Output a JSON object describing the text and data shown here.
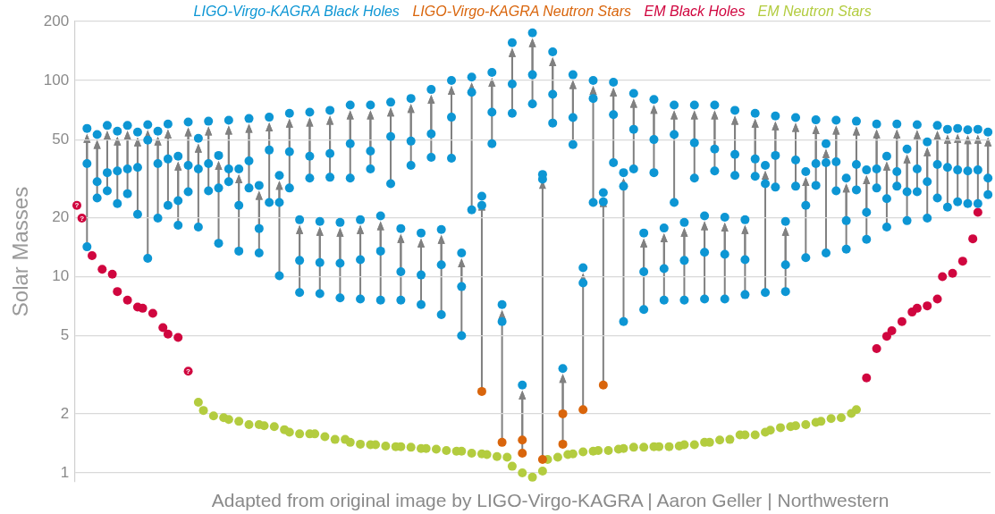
{
  "chart_data": {
    "type": "scatter",
    "ylabel": "Solar Masses",
    "log": true,
    "grid": "y",
    "tick_labels": "y",
    "marker": "circle",
    "ylim": [
      0.9,
      200
    ],
    "yticks": [
      1,
      2,
      5,
      10,
      20,
      50,
      100,
      200
    ],
    "categories": [
      null,
      null,
      null,
      null,
      null,
      null,
      null,
      null,
      null,
      null,
      null,
      null,
      null,
      null,
      null,
      null,
      null,
      null,
      null,
      null,
      null,
      null,
      null,
      null,
      null,
      null,
      null,
      null,
      null,
      null,
      null,
      null,
      null,
      null,
      null,
      null,
      null,
      null,
      null,
      null,
      null,
      null,
      null,
      null,
      null,
      null,
      null,
      null,
      null,
      null,
      null,
      null,
      null,
      null,
      null,
      null,
      null,
      null,
      null,
      null,
      null,
      null,
      null,
      null,
      null,
      null,
      null,
      null,
      null,
      null,
      null,
      null,
      null,
      null,
      null,
      null,
      null,
      null,
      null,
      null,
      null,
      null,
      null,
      null,
      null,
      null,
      null,
      null,
      null,
      null,
      null,
      null,
      null,
      null,
      null,
      null,
      null,
      null,
      null,
      null,
      null,
      null,
      null,
      null,
      null,
      null,
      null,
      null,
      null,
      null,
      null,
      null,
      null,
      null,
      null,
      null,
      null,
      null,
      null,
      null,
      null,
      null,
      null,
      null,
      null,
      null,
      null,
      null,
      null,
      null,
      null,
      null,
      null,
      null,
      null,
      null,
      null,
      null,
      null,
      null,
      null,
      null,
      null,
      null,
      null,
      null,
      null,
      null,
      null,
      null,
      null,
      null,
      null,
      null,
      null,
      null,
      null,
      null,
      null,
      null,
      null,
      null,
      null,
      null,
      null,
      null,
      null,
      null,
      null,
      null,
      null,
      null,
      null,
      null,
      null,
      null,
      null,
      null,
      null,
      null,
      null
    ],
    "series": [
      {
        "name": "LIGO-Virgo-KAGRA Black Holes",
        "color": "#0d96d4",
        "values": [
          null,
          null,
          57,
          null,
          53,
          null,
          59,
          null,
          55.2,
          null,
          59,
          null,
          54.6,
          null,
          59.5,
          null,
          55.2,
          null,
          60,
          null,
          41.1,
          null,
          61.4,
          null,
          50.7,
          null,
          62,
          null,
          41.5,
          null,
          62.7,
          null,
          35.4,
          null,
          64,
          null,
          29.2,
          null,
          65,
          null,
          32.8,
          null,
          68,
          null,
          19.5,
          null,
          69,
          null,
          19.1,
          null,
          70.5,
          null,
          18.9,
          null,
          75,
          null,
          19.5,
          null,
          75,
          null,
          20.4,
          null,
          77.5,
          null,
          17.6,
          null,
          81,
          null,
          16.7,
          null,
          90,
          null,
          17.4,
          null,
          100,
          null,
          13.2,
          null,
          104,
          null,
          25.7,
          null,
          110,
          null,
          7.2,
          null,
          156,
          null,
          2.8,
          null,
          175,
          null,
          33.2,
          null,
          140,
          null,
          3.4,
          null,
          107,
          null,
          11.1,
          null,
          100,
          null,
          26.8,
          null,
          98,
          null,
          33.9,
          null,
          86,
          null,
          16.7,
          null,
          80,
          null,
          17.7,
          null,
          75,
          null,
          18.9,
          null,
          75,
          null,
          20.4,
          null,
          75,
          null,
          20.1,
          null,
          70.5,
          null,
          19.5,
          null,
          68,
          null,
          36.9,
          null,
          66,
          null,
          19.1,
          null,
          64.7,
          null,
          34.3,
          null,
          63,
          null,
          47.6,
          null,
          62.7,
          null,
          31.8,
          null,
          62,
          null,
          35,
          null,
          60,
          null,
          41.1,
          null,
          60,
          null,
          44.7,
          null,
          59.5,
          null,
          48.6,
          null,
          59,
          null,
          56.4,
          null,
          57,
          null,
          56,
          null,
          56.4,
          null,
          54.6
        ]
      },
      {
        "color": "#0d96d4",
        "values": [
          null,
          null,
          37.7,
          null,
          30.5,
          null,
          33.9,
          null,
          34.6,
          null,
          35.4,
          null,
          36.1,
          null,
          49.7,
          null,
          37.7,
          null,
          39.8,
          null,
          24.4,
          null,
          36.9,
          null,
          35.4,
          null,
          37.7,
          null,
          28.3,
          null,
          35.4,
          null,
          23.1,
          null,
          38.9,
          null,
          17.6,
          null,
          44.2,
          null,
          23.9,
          null,
          43.3,
          null,
          12.1,
          null,
          41.1,
          null,
          11.8,
          null,
          42.4,
          null,
          11.7,
          null,
          47.6,
          null,
          12.2,
          null,
          43.7,
          null,
          13.5,
          null,
          51.8,
          null,
          10.6,
          null,
          49.1,
          null,
          10.2,
          null,
          53.5,
          null,
          11.5,
          null,
          65,
          null,
          8.9,
          null,
          87,
          null,
          23.1,
          null,
          69,
          null,
          5.9,
          null,
          96,
          null,
          null,
          null,
          107,
          null,
          31.4,
          null,
          85,
          null,
          null,
          null,
          64.7,
          null,
          9.3,
          null,
          81,
          null,
          24.1,
          null,
          67,
          null,
          28.9,
          null,
          56.4,
          null,
          10.6,
          null,
          50,
          null,
          11.0,
          null,
          53,
          null,
          12.1,
          null,
          48.1,
          null,
          13.3,
          null,
          44.7,
          null,
          13.0,
          null,
          42,
          null,
          12.2,
          null,
          39.8,
          null,
          29.8,
          null,
          41.5,
          null,
          11.5,
          null,
          39.3,
          null,
          23.1,
          null,
          37.7,
          null,
          38.1,
          null,
          38.5,
          null,
          19.3,
          null,
          37.3,
          null,
          21.3,
          null,
          35.4,
          null,
          25,
          null,
          34.3,
          null,
          27.1,
          null,
          35.4,
          null,
          30.5,
          null,
          37.3,
          null,
          36.1,
          null,
          35,
          null,
          34.6,
          null,
          35,
          null,
          31.8
        ]
      },
      {
        "color": "#0d96d4",
        "values": [
          null,
          null,
          14.2,
          null,
          25.2,
          null,
          27.4,
          null,
          23.6,
          null,
          26.5,
          null,
          20.8,
          null,
          12.4,
          null,
          19.9,
          null,
          23.1,
          null,
          18.3,
          null,
          27.1,
          null,
          17.9,
          null,
          27.4,
          null,
          14.8,
          null,
          30.5,
          null,
          13.5,
          null,
          28.3,
          null,
          13.2,
          null,
          23.9,
          null,
          10.1,
          null,
          28.3,
          null,
          8.3,
          null,
          31.8,
          null,
          8.2,
          null,
          32.1,
          null,
          7.8,
          null,
          31.8,
          null,
          7.7,
          null,
          35.4,
          null,
          7.6,
          null,
          29.8,
          null,
          7.6,
          null,
          36.9,
          null,
          7.2,
          null,
          40.6,
          null,
          6.4,
          null,
          40.2,
          null,
          5.0,
          null,
          21.9,
          null,
          null,
          null,
          47.6,
          null,
          null,
          null,
          68,
          null,
          null,
          null,
          76,
          null,
          null,
          null,
          60.7,
          null,
          null,
          null,
          47.1,
          null,
          null,
          null,
          23.9,
          null,
          null,
          null,
          38.1,
          null,
          5.9,
          null,
          35.4,
          null,
          6.8,
          null,
          33.9,
          null,
          7.6,
          null,
          23.9,
          null,
          7.6,
          null,
          31.8,
          null,
          7.7,
          null,
          34.6,
          null,
          7.7,
          null,
          32.8,
          null,
          8.1,
          null,
          32.5,
          null,
          8.3,
          null,
          28.6,
          null,
          8.4,
          null,
          28.9,
          null,
          12.5,
          null,
          29.2,
          null,
          13.2,
          null,
          27.4,
          null,
          13.8,
          null,
          27.7,
          null,
          15.5,
          null,
          28.3,
          null,
          17.9,
          null,
          28.9,
          null,
          19.3,
          null,
          27.1,
          null,
          19.9,
          null,
          25.2,
          null,
          22.6,
          null,
          24.1,
          null,
          23.6,
          null,
          23.6,
          null,
          26.2
        ]
      },
      {
        "name": "LIGO-Virgo-KAGRA Neutron Stars",
        "color": "#d9650c",
        "values": [
          null,
          null,
          null,
          null,
          null,
          null,
          null,
          null,
          null,
          null,
          null,
          null,
          null,
          null,
          null,
          null,
          null,
          null,
          null,
          null,
          null,
          null,
          null,
          null,
          null,
          null,
          null,
          null,
          null,
          null,
          null,
          null,
          null,
          null,
          null,
          null,
          null,
          null,
          null,
          null,
          null,
          null,
          null,
          null,
          null,
          null,
          null,
          null,
          null,
          null,
          null,
          null,
          null,
          null,
          null,
          null,
          null,
          null,
          null,
          null,
          null,
          null,
          null,
          null,
          null,
          null,
          null,
          null,
          null,
          null,
          null,
          null,
          null,
          null,
          null,
          null,
          null,
          null,
          null,
          null,
          2.6,
          null,
          null,
          null,
          1.43,
          null,
          null,
          null,
          1.26,
          null,
          null,
          null,
          1.17,
          null,
          null,
          null,
          1.4,
          null,
          null,
          null,
          2.1,
          null,
          null,
          null,
          2.8,
          null,
          null,
          null,
          null,
          null,
          null,
          null,
          null,
          null,
          null,
          null,
          null,
          null,
          null,
          null,
          null,
          null,
          null,
          null,
          null,
          null,
          null,
          null,
          null,
          null,
          null,
          null,
          null,
          null,
          null,
          null,
          null,
          null,
          null,
          null,
          null,
          null,
          null,
          null,
          null,
          null,
          null,
          null,
          null,
          null,
          null,
          null,
          null,
          null,
          null,
          null,
          null,
          null,
          null,
          null,
          null,
          null,
          null,
          null,
          null,
          null,
          null,
          null,
          null,
          null,
          null,
          null,
          null,
          null,
          null,
          null,
          null,
          null,
          null,
          null,
          null
        ]
      },
      {
        "color": "#d9650c",
        "values": [
          null,
          null,
          null,
          null,
          null,
          null,
          null,
          null,
          null,
          null,
          null,
          null,
          null,
          null,
          null,
          null,
          null,
          null,
          null,
          null,
          null,
          null,
          null,
          null,
          null,
          null,
          null,
          null,
          null,
          null,
          null,
          null,
          null,
          null,
          null,
          null,
          null,
          null,
          null,
          null,
          null,
          null,
          null,
          null,
          null,
          null,
          null,
          null,
          null,
          null,
          null,
          null,
          null,
          null,
          null,
          null,
          null,
          null,
          null,
          null,
          null,
          null,
          null,
          null,
          null,
          null,
          null,
          null,
          null,
          null,
          null,
          null,
          null,
          null,
          null,
          null,
          null,
          null,
          null,
          null,
          null,
          null,
          null,
          null,
          null,
          null,
          null,
          null,
          1.47,
          null,
          null,
          null,
          null,
          null,
          null,
          null,
          2.0,
          null,
          null,
          null,
          null,
          null,
          null,
          null,
          null,
          null,
          null,
          null,
          null,
          null,
          null,
          null,
          null,
          null,
          null,
          null,
          null,
          null,
          null,
          null,
          null,
          null,
          null,
          null,
          null,
          null,
          null,
          null,
          null,
          null,
          null,
          null,
          null,
          null,
          null,
          null,
          null,
          null,
          null,
          null,
          null,
          null,
          null,
          null,
          null,
          null,
          null,
          null,
          null,
          null,
          null,
          null,
          null,
          null,
          null,
          null,
          null,
          null,
          null,
          null,
          null,
          null,
          null,
          null,
          null,
          null,
          null,
          null,
          null,
          null,
          null,
          null,
          null,
          null,
          null,
          null,
          null,
          null,
          null,
          null,
          null
        ]
      },
      {
        "name": "EM Black Holes",
        "color": "#d0063f",
        "value_labels": [
          "?",
          "?",
          null,
          null,
          null,
          null,
          null,
          null,
          null,
          null,
          null,
          null,
          null,
          null,
          null,
          null,
          null,
          null,
          null,
          null,
          null,
          null,
          "?",
          null,
          null,
          null,
          null,
          null,
          null,
          null,
          null,
          null,
          null,
          null,
          null,
          null,
          null,
          null,
          null,
          null,
          null,
          null,
          null,
          null,
          null,
          null,
          null,
          null,
          null,
          null,
          null,
          null,
          null,
          null,
          null,
          null,
          null,
          null,
          null,
          null,
          null,
          null,
          null,
          null,
          null,
          null,
          null,
          null,
          null,
          null,
          null,
          null,
          null,
          null,
          null,
          null,
          null,
          null,
          null,
          null,
          null,
          null,
          null,
          null,
          null,
          null,
          null,
          null,
          null,
          null,
          null,
          null,
          null,
          null,
          null,
          null,
          null,
          null,
          null,
          null,
          null,
          null,
          null,
          null,
          null,
          null,
          null,
          null,
          null,
          null,
          null,
          null,
          null,
          null,
          null,
          null,
          null,
          null,
          null,
          null,
          null,
          null,
          null,
          null,
          null,
          null,
          null,
          null,
          null,
          null,
          null,
          null,
          null,
          null,
          null,
          null,
          null,
          null,
          null,
          null,
          null,
          null,
          null,
          null,
          null,
          null,
          null,
          null,
          null,
          null,
          null,
          null,
          null,
          null,
          null,
          null,
          null,
          null,
          null,
          null,
          null,
          null,
          null,
          null,
          null,
          null,
          null,
          null,
          null,
          null,
          null,
          null,
          null,
          null,
          null,
          null,
          null,
          null,
          null,
          null,
          null
        ],
        "values": [
          23.1,
          19.9,
          null,
          12.8,
          null,
          10.9,
          null,
          10.3,
          8.4,
          null,
          7.6,
          null,
          7.0,
          6.9,
          null,
          6.5,
          null,
          5.5,
          5.1,
          null,
          4.9,
          null,
          3.3,
          null,
          null,
          null,
          null,
          null,
          null,
          null,
          null,
          null,
          null,
          null,
          null,
          null,
          null,
          null,
          null,
          null,
          null,
          null,
          null,
          null,
          null,
          null,
          null,
          null,
          null,
          null,
          null,
          null,
          null,
          null,
          null,
          null,
          null,
          null,
          null,
          null,
          null,
          null,
          null,
          null,
          null,
          null,
          null,
          null,
          null,
          null,
          null,
          null,
          null,
          null,
          null,
          null,
          null,
          null,
          null,
          null,
          null,
          null,
          null,
          null,
          null,
          null,
          null,
          null,
          null,
          null,
          null,
          null,
          null,
          null,
          null,
          null,
          null,
          null,
          null,
          null,
          null,
          null,
          null,
          null,
          null,
          null,
          null,
          null,
          null,
          null,
          null,
          null,
          null,
          null,
          null,
          null,
          null,
          null,
          null,
          null,
          null,
          null,
          null,
          null,
          null,
          null,
          null,
          null,
          null,
          null,
          null,
          null,
          null,
          null,
          null,
          null,
          null,
          null,
          null,
          null,
          null,
          null,
          null,
          null,
          null,
          null,
          null,
          null,
          null,
          null,
          null,
          null,
          null,
          null,
          null,
          null,
          3.05,
          null,
          4.3,
          null,
          4.97,
          5.3,
          null,
          5.9,
          null,
          6.6,
          6.9,
          null,
          7.1,
          null,
          7.7,
          10.0,
          null,
          10.4,
          null,
          12.0,
          null,
          15.6,
          21.3,
          null,
          null
        ]
      },
      {
        "name": "EM Neutron Stars",
        "color": "#b3cc3f",
        "values": [
          null,
          null,
          null,
          null,
          null,
          null,
          null,
          null,
          null,
          null,
          null,
          null,
          null,
          null,
          null,
          null,
          null,
          null,
          null,
          null,
          null,
          null,
          null,
          null,
          2.29,
          2.08,
          null,
          1.95,
          null,
          1.91,
          1.87,
          null,
          1.83,
          null,
          1.76,
          null,
          1.76,
          1.74,
          null,
          1.72,
          null,
          1.66,
          1.61,
          null,
          1.58,
          null,
          1.58,
          1.58,
          null,
          1.53,
          null,
          1.48,
          null,
          1.48,
          1.43,
          null,
          1.4,
          null,
          1.39,
          1.39,
          null,
          1.37,
          null,
          1.36,
          1.36,
          null,
          1.35,
          null,
          1.33,
          1.33,
          null,
          1.32,
          null,
          1.3,
          null,
          1.29,
          1.29,
          null,
          1.26,
          null,
          1.25,
          1.24,
          null,
          1.21,
          null,
          1.2,
          1.08,
          null,
          1.0,
          null,
          0.95,
          null,
          1.02,
          1.17,
          null,
          1.2,
          null,
          1.24,
          1.25,
          null,
          1.28,
          null,
          1.29,
          1.3,
          null,
          1.3,
          null,
          1.32,
          1.33,
          null,
          1.35,
          null,
          1.35,
          null,
          1.36,
          1.36,
          null,
          1.36,
          null,
          1.37,
          1.39,
          null,
          1.39,
          null,
          1.43,
          1.43,
          null,
          1.47,
          null,
          1.48,
          null,
          1.56,
          1.56,
          null,
          1.56,
          null,
          1.61,
          1.65,
          null,
          1.7,
          null,
          1.72,
          1.74,
          null,
          1.76,
          null,
          1.81,
          1.83,
          null,
          1.89,
          null,
          1.91,
          null,
          2.01,
          2.1,
          null,
          null,
          null,
          null,
          null,
          null,
          null,
          null,
          null,
          null,
          null,
          null,
          null,
          null,
          null,
          null,
          null,
          null,
          null,
          null,
          null,
          null,
          null,
          null,
          null,
          null
        ]
      }
    ],
    "annotations": [
      "Adapted from original image by LIGO-Virgo-KAGRA | Aaron Geller | Northwestern"
    ]
  }
}
